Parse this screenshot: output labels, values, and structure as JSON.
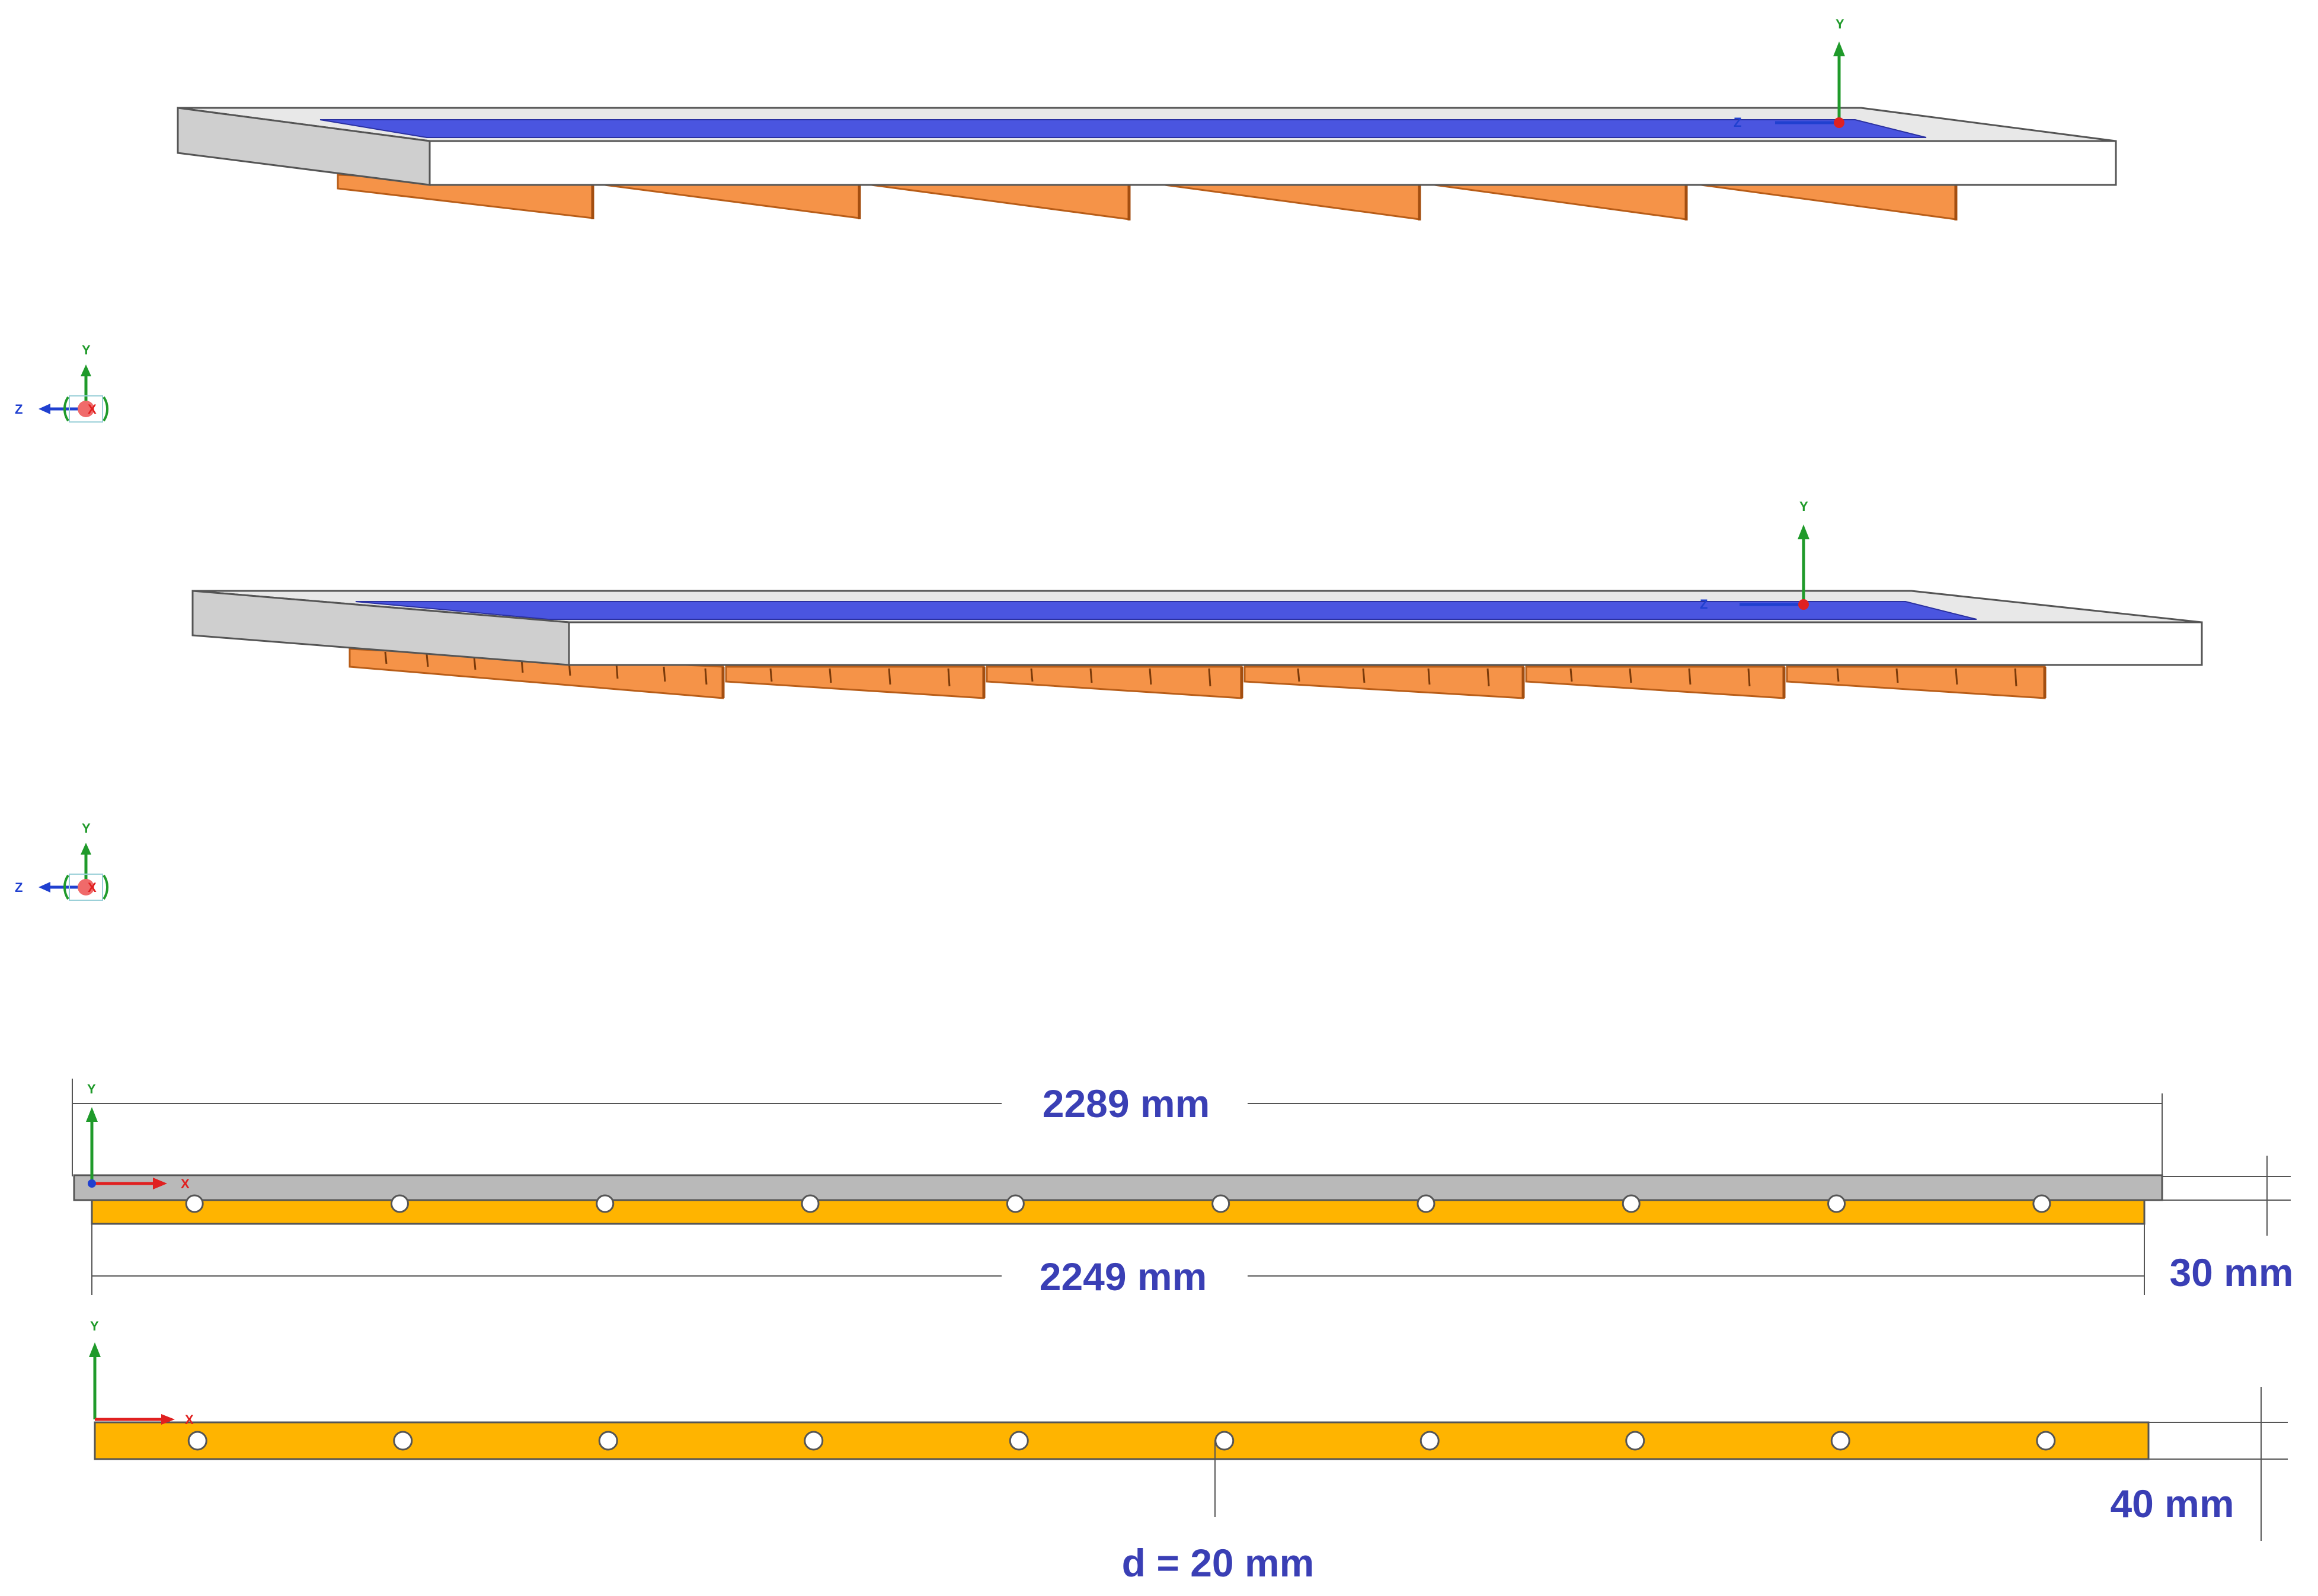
{
  "axes": {
    "x": "X",
    "y": "Y",
    "z": "Z"
  },
  "dimensions": {
    "plate_length": "2289 mm",
    "fin_length": "2249 mm",
    "fin_height_top": "30 mm",
    "fin_height_bottom": "40 mm",
    "hole_diameter": "d = 20 mm"
  },
  "colors": {
    "panel_frame": "#d8d8d8",
    "panel_surface": "#4a55e0",
    "fins_3d": "#f59348",
    "plate_side": "#b9b9b9",
    "fin_side": "#ffb400",
    "dimension_text": "#3a3fb5",
    "axis_x": "#e02020",
    "axis_y": "#1f9a2a",
    "axis_z": "#2040d0"
  },
  "side_views": {
    "hole_count": 10
  }
}
